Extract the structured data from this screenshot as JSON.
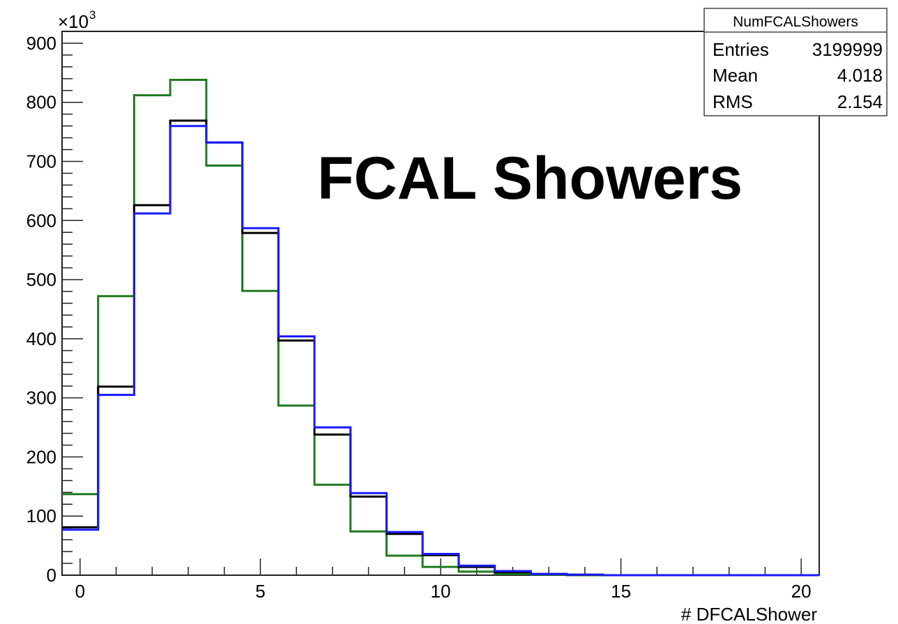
{
  "chart_data": {
    "type": "line",
    "title": "FCAL Showers",
    "xlabel": "# DFCALShower",
    "ylabel": "",
    "y_multiplier_label": "×10",
    "y_multiplier_exp": "3",
    "xlim": [
      -0.5,
      20.5
    ],
    "ylim": [
      0,
      920
    ],
    "x_ticks": [
      "0",
      "5",
      "10",
      "15",
      "20"
    ],
    "y_ticks": [
      "0",
      "100",
      "200",
      "300",
      "400",
      "500",
      "600",
      "700",
      "800",
      "900"
    ],
    "bin_edges": [
      -0.5,
      0.5,
      1.5,
      2.5,
      3.5,
      4.5,
      5.5,
      6.5,
      7.5,
      8.5,
      9.5,
      10.5,
      11.5,
      12.5,
      13.5,
      14.5,
      15.5,
      16.5,
      17.5,
      18.5,
      19.5,
      20.5
    ],
    "series": [
      {
        "color": "#1f7a1f",
        "values": [
          137,
          472,
          812,
          838,
          693,
          481,
          287,
          153,
          74,
          33,
          14,
          6,
          2,
          1,
          0,
          0,
          0,
          0,
          0,
          0,
          0
        ]
      },
      {
        "color": "#000000",
        "values": [
          81,
          319,
          626,
          769,
          732,
          579,
          397,
          238,
          133,
          70,
          34,
          14,
          5,
          2,
          1,
          0,
          0,
          0,
          0,
          0,
          0
        ]
      },
      {
        "color": "#1a1aff",
        "values": [
          77,
          305,
          612,
          760,
          732,
          587,
          404,
          250,
          139,
          73,
          36,
          16,
          7,
          2,
          1,
          0,
          0,
          0,
          0,
          0,
          0
        ]
      }
    ],
    "grid": false,
    "legend": "none"
  },
  "stats_box": {
    "title": "NumFCALShowers",
    "rows": [
      {
        "label": "Entries",
        "value": "3199999"
      },
      {
        "label": "Mean",
        "value": "4.018"
      },
      {
        "label": "RMS",
        "value": "2.154"
      }
    ]
  }
}
